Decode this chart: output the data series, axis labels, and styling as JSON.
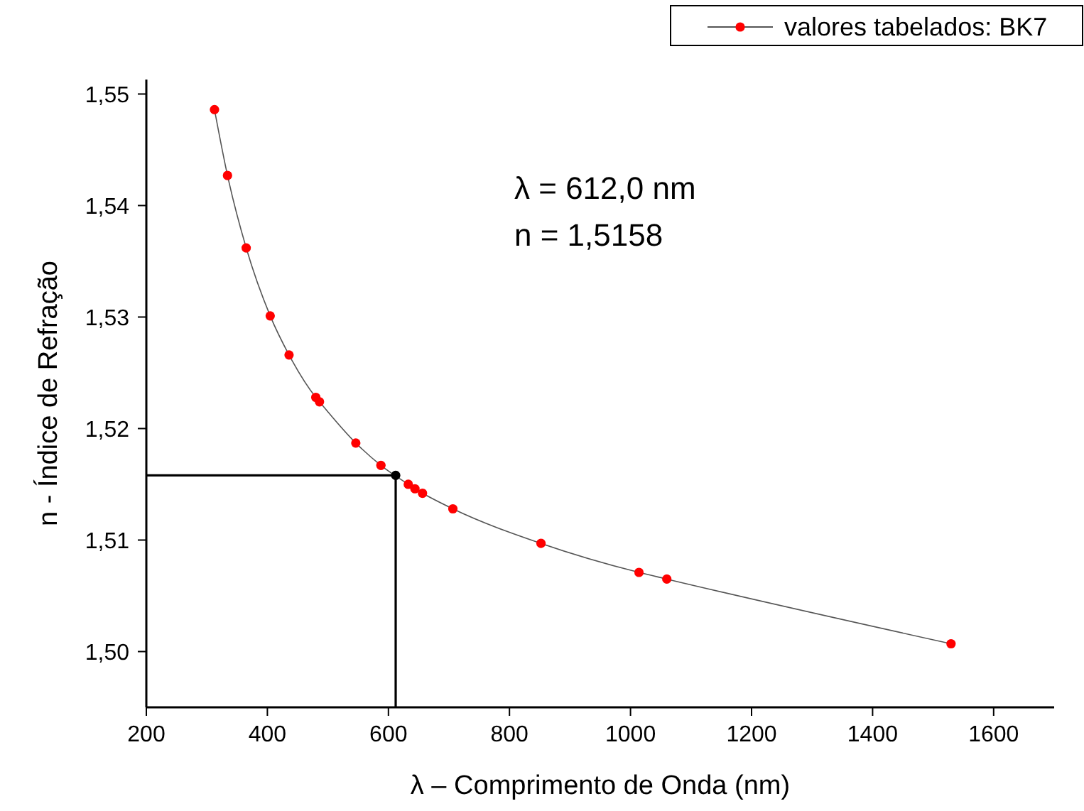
{
  "chart_data": {
    "type": "line",
    "xlabel": "λ – Comprimento de Onda (nm)",
    "ylabel": "n - Índice de Refração",
    "xlim": [
      200,
      1700
    ],
    "xticks": [
      200,
      400,
      600,
      800,
      1000,
      1200,
      1400,
      1600
    ],
    "ylim": [
      1.495,
      1.5513
    ],
    "yticks": [
      {
        "value": 1.5,
        "label": "1,50"
      },
      {
        "value": 1.51,
        "label": "1,51"
      },
      {
        "value": 1.52,
        "label": "1,52"
      },
      {
        "value": 1.53,
        "label": "1,53"
      },
      {
        "value": 1.54,
        "label": "1,54"
      },
      {
        "value": 1.55,
        "label": "1,55"
      }
    ],
    "grid": false,
    "legend": "top right",
    "annotations": [
      "λ = 612,0 nm",
      "n = 1,5158"
    ],
    "series": [
      {
        "name": "valores tabelados: BK7",
        "marker": "circle",
        "color": "#ff0000",
        "x": [
          312.6,
          334.1,
          365,
          404.7,
          435.8,
          480,
          486.1,
          546.1,
          587.6,
          632.8,
          643.8,
          656.3,
          706.5,
          852.1,
          1014,
          1060,
          1529.6
        ],
        "values": [
          1.5486,
          1.5427,
          1.5362,
          1.5301,
          1.5266,
          1.5228,
          1.5224,
          1.5187,
          1.5167,
          1.515,
          1.5146,
          1.5142,
          1.5128,
          1.5097,
          1.5071,
          1.5065,
          1.5007
        ]
      },
      {
        "type": "line",
        "marker": "none",
        "color": "#000000",
        "x": [
          200,
          612,
          612
        ],
        "values": [
          1.5158,
          1.5158,
          1.495
        ]
      },
      {
        "type": "scatter",
        "marker": "circle",
        "color": "#000000",
        "x": [
          612
        ],
        "values": [
          1.5158
        ]
      }
    ]
  }
}
